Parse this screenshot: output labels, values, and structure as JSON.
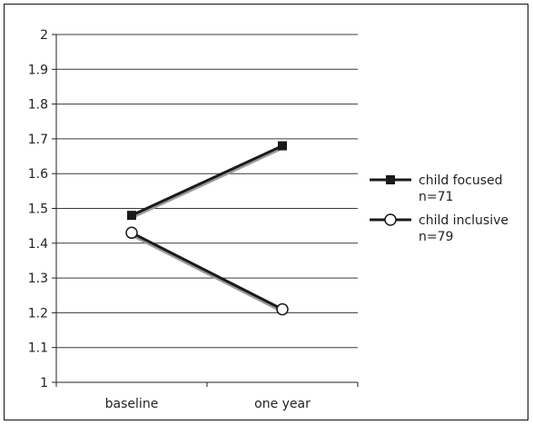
{
  "chart_data": {
    "type": "line",
    "categories": [
      "baseline",
      "one year"
    ],
    "ylim": [
      1,
      2
    ],
    "yticks": [
      "1",
      "1.1",
      "1.2",
      "1.3",
      "1.4",
      "1.5",
      "1.6",
      "1.7",
      "1.8",
      "1.9",
      "2"
    ],
    "grid": true,
    "legend_position": "right",
    "series": [
      {
        "name": "child focused",
        "n_label": "n=71",
        "marker": "filled-square",
        "color": "#1a1a1a",
        "values": [
          1.48,
          1.68
        ]
      },
      {
        "name": "child inclusive",
        "n_label": "n=79",
        "marker": "open-circle",
        "color": "#1a1a1a",
        "values": [
          1.43,
          1.21
        ]
      }
    ]
  }
}
